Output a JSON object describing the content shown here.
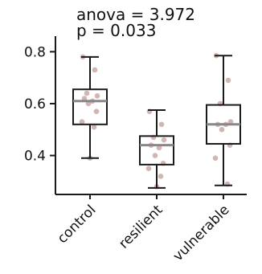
{
  "chart_data": {
    "type": "box",
    "annotations": [
      "anova = 3.972",
      "p = 0.033"
    ],
    "categories": [
      "control",
      "resilient",
      "vulnerable"
    ],
    "ylim": [
      0.25,
      0.86
    ],
    "yticks": [
      0.4,
      0.6,
      0.8
    ],
    "ytick_labels": [
      "0.4",
      "0.6",
      "0.8"
    ],
    "grid": false,
    "boxes": [
      {
        "category": "control",
        "whisker_low": 0.39,
        "q1": 0.52,
        "median": 0.61,
        "q3": 0.655,
        "whisker_high": 0.78
      },
      {
        "category": "resilient",
        "whisker_low": 0.275,
        "q1": 0.365,
        "median": 0.44,
        "q3": 0.475,
        "whisker_high": 0.575
      },
      {
        "category": "vulnerable",
        "whisker_low": 0.285,
        "q1": 0.445,
        "median": 0.52,
        "q3": 0.595,
        "whisker_high": 0.785
      }
    ],
    "points": [
      {
        "category": "control",
        "values": [
          0.78,
          0.73,
          0.64,
          0.63,
          0.62,
          0.61,
          0.6,
          0.57,
          0.53,
          0.51,
          0.39
        ]
      },
      {
        "category": "resilient",
        "values": [
          0.57,
          0.52,
          0.47,
          0.46,
          0.44,
          0.43,
          0.4,
          0.37,
          0.35,
          0.32,
          0.28
        ]
      },
      {
        "category": "vulnerable",
        "values": [
          0.785,
          0.69,
          0.6,
          0.53,
          0.52,
          0.52,
          0.5,
          0.44,
          0.39,
          0.29
        ]
      }
    ],
    "colors": {
      "box_edge": "#1a1a1a",
      "median_line": "#888888",
      "point": "#c9a9a6",
      "axis": "#1a1a1a"
    }
  }
}
